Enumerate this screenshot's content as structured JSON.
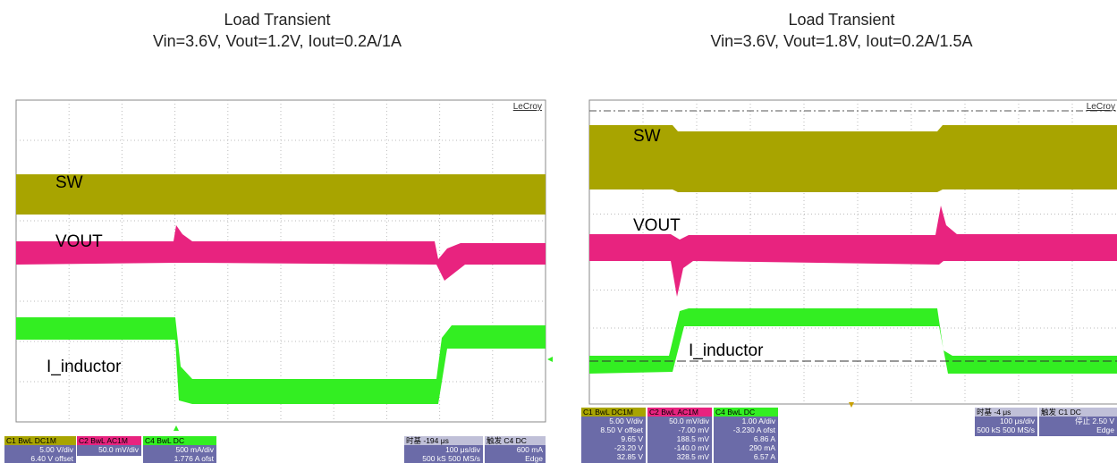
{
  "panels": [
    {
      "title": "Load Transient",
      "subtitle": "Vin=3.6V, Vout=1.2V, Iout=0.2A/1A",
      "brand": "LeCroy",
      "labels": {
        "sw": "SW",
        "vout": "VOUT",
        "inductor": "I_inductor"
      },
      "readouts": [
        {
          "head": "C1  BwL DC1M",
          "lines": [
            "5.00 V/div",
            "6.40 V offset"
          ]
        },
        {
          "head": "C2  BwL AC1M",
          "lines": [
            "50.0 mV/div"
          ]
        },
        {
          "head": "C4  BwL DC",
          "lines": [
            "500 mA/div",
            "1.776 A ofst"
          ]
        },
        {
          "head": "时基  -194 μs",
          "lines": [
            "100 μs/div",
            "500 kS  500 MS/s"
          ]
        },
        {
          "head": "触发  C4 DC",
          "lines": [
            "600 mA",
            "Edge"
          ]
        }
      ]
    },
    {
      "title": "Load Transient",
      "subtitle": "Vin=3.6V, Vout=1.8V, Iout=0.2A/1.5A",
      "brand": "LeCroy",
      "labels": {
        "sw": "SW",
        "vout": "VOUT",
        "inductor": "I_inductor"
      },
      "readouts": [
        {
          "head": "C1  BwL DC1M",
          "lines": [
            "5.00 V/div",
            "8.50 V offset",
            "9.65 V",
            "-23.20 V",
            "32.85 V"
          ]
        },
        {
          "head": "C2  BwL AC1M",
          "lines": [
            "50.0 mV/div",
            "-7.00 mV",
            "188.5 mV",
            "-140.0 mV",
            "328.5 mV"
          ]
        },
        {
          "head": "C4  BwL DC",
          "lines": [
            "1.00 A/div",
            "-3.230 A ofst",
            "6.86 A",
            "290 mA",
            "6.57 A"
          ]
        },
        {
          "head": "时基  -4 μs",
          "lines": [
            "100 μs/div",
            "500 kS  500 MS/s"
          ]
        },
        {
          "head": "触发  C1 DC",
          "lines": [
            "停止  2.50 V",
            "Edge"
          ]
        }
      ]
    }
  ]
}
